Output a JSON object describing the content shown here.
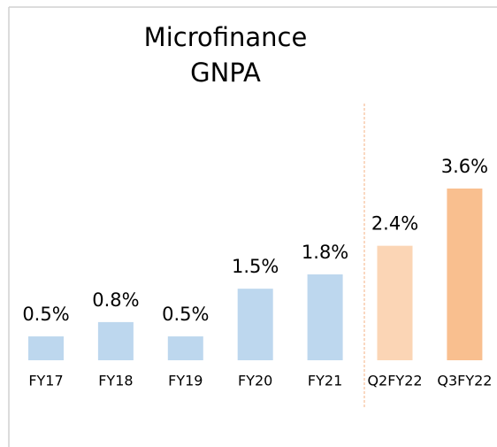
{
  "chart_data": {
    "type": "bar",
    "title": "Microfinance GNPA",
    "categories": [
      "FY17",
      "FY18",
      "FY19",
      "FY20",
      "FY21",
      "Q2FY22",
      "Q3FY22"
    ],
    "values": [
      0.5,
      0.8,
      0.5,
      1.5,
      1.8,
      2.4,
      3.6
    ],
    "value_labels": [
      "0.5%",
      "0.8%",
      "0.5%",
      "1.5%",
      "1.8%",
      "2.4%",
      "3.6%"
    ],
    "colors": [
      "#bdd7ee",
      "#bdd7ee",
      "#bdd7ee",
      "#bdd7ee",
      "#bdd7ee",
      "#fbd5b5",
      "#f9bf8f"
    ]
  }
}
